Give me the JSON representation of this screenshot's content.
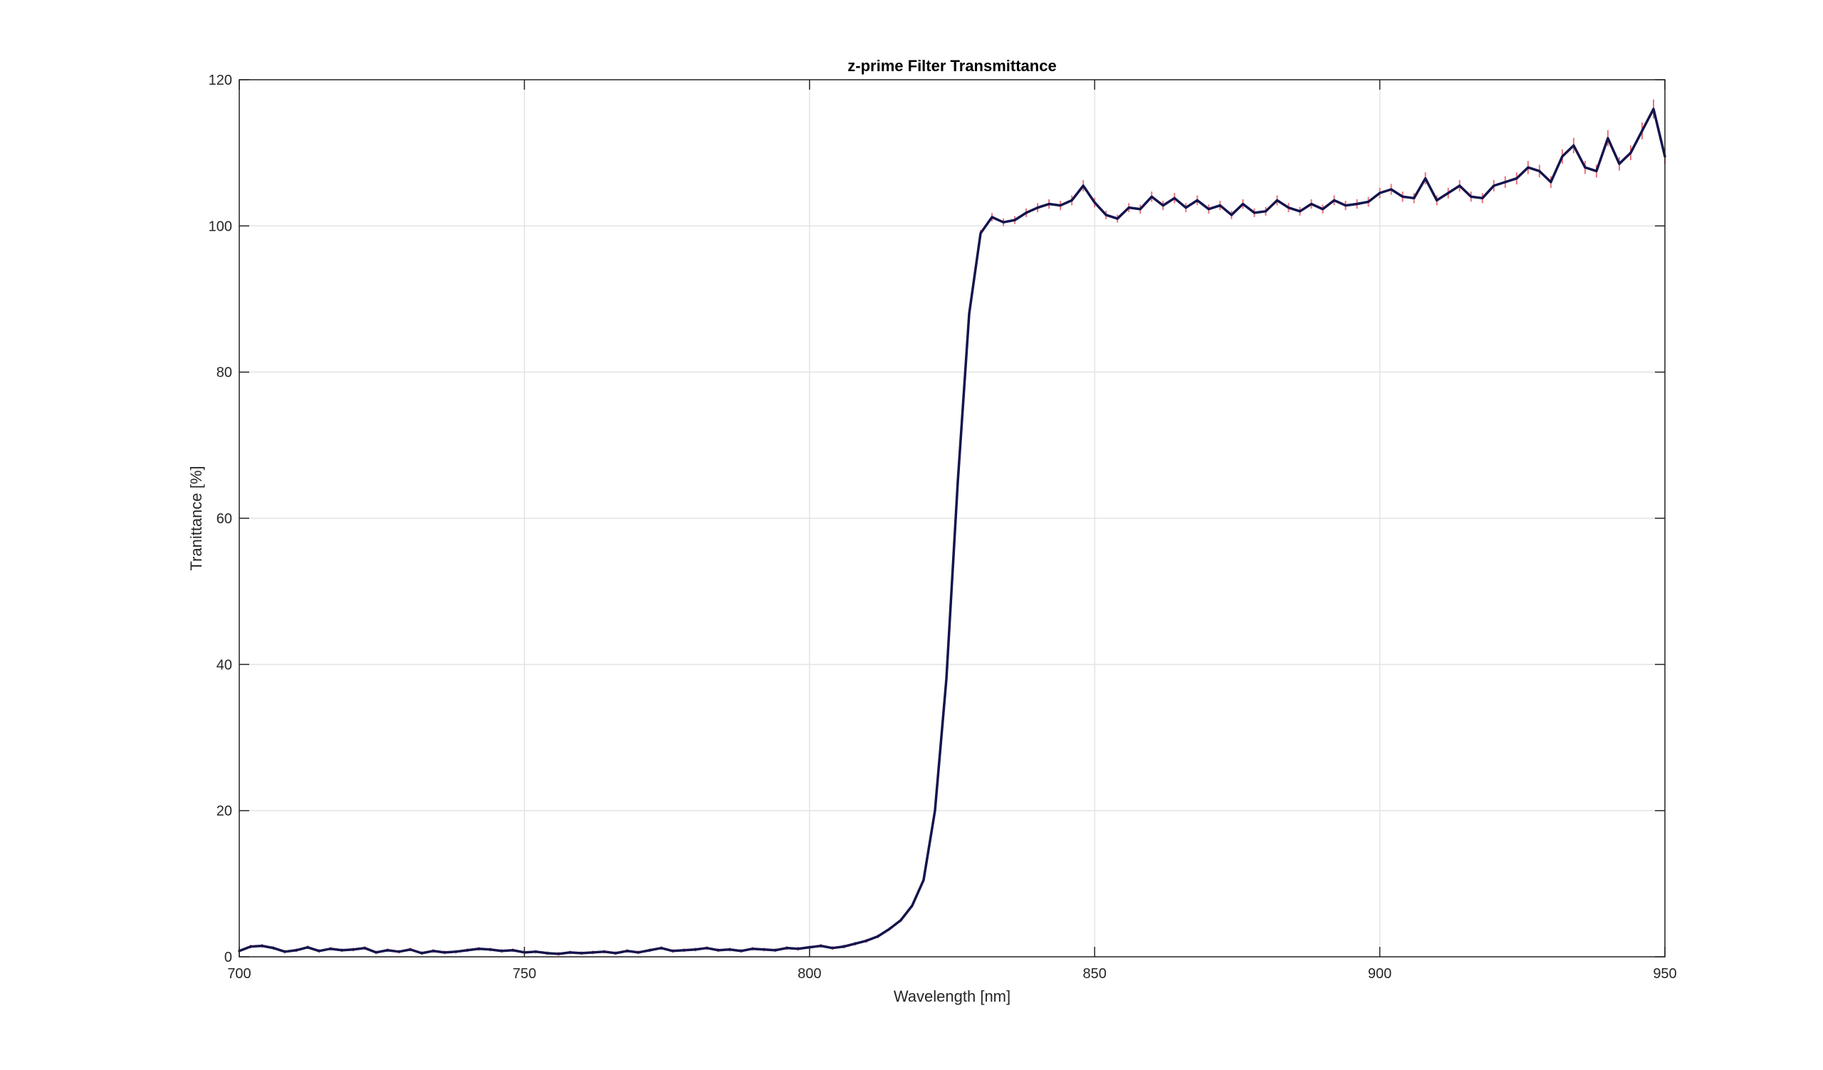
{
  "chart_data": {
    "type": "line",
    "title": "z-prime Filter Transmittance",
    "xlabel": "Wavelength [nm]",
    "ylabel": "Tranittance [%]",
    "xlim": [
      700,
      950
    ],
    "ylim": [
      0,
      120
    ],
    "xticks": [
      700,
      750,
      800,
      850,
      900,
      950
    ],
    "yticks": [
      0,
      20,
      40,
      60,
      80,
      100,
      120
    ],
    "grid": true,
    "colors": {
      "line": "#14144d",
      "error": "#e8747c",
      "grid": "#e3e3e3",
      "axis": "#262626"
    },
    "series": [
      {
        "x": [
          700,
          702,
          704,
          706,
          708,
          710,
          712,
          714,
          716,
          718,
          720,
          722,
          724,
          726,
          728,
          730,
          732,
          734,
          736,
          738,
          740,
          742,
          744,
          746,
          748,
          750,
          752,
          754,
          756,
          758,
          760,
          762,
          764,
          766,
          768,
          770,
          772,
          774,
          776,
          778,
          780,
          782,
          784,
          786,
          788,
          790,
          792,
          794,
          796,
          798,
          800,
          802,
          804,
          806,
          808,
          810,
          812,
          814,
          816,
          818,
          820,
          822,
          824,
          826,
          828,
          830,
          832,
          834,
          836,
          838,
          840,
          842,
          844,
          846,
          848,
          850,
          852,
          854,
          856,
          858,
          860,
          862,
          864,
          866,
          868,
          870,
          872,
          874,
          876,
          878,
          880,
          882,
          884,
          886,
          888,
          890,
          892,
          894,
          896,
          898,
          900,
          902,
          904,
          906,
          908,
          910,
          912,
          914,
          916,
          918,
          920,
          922,
          924,
          926,
          928,
          930,
          932,
          934,
          936,
          938,
          940,
          942,
          944,
          946,
          948,
          950
        ],
        "y": [
          0.8,
          1.4,
          1.5,
          1.2,
          0.7,
          0.9,
          1.3,
          0.8,
          1.1,
          0.9,
          1.0,
          1.2,
          0.6,
          0.9,
          0.7,
          1.0,
          0.5,
          0.8,
          0.6,
          0.7,
          0.9,
          1.1,
          1.0,
          0.8,
          0.9,
          0.6,
          0.7,
          0.5,
          0.4,
          0.6,
          0.5,
          0.6,
          0.7,
          0.5,
          0.8,
          0.6,
          0.9,
          1.2,
          0.8,
          0.9,
          1.0,
          1.2,
          0.9,
          1.0,
          0.8,
          1.1,
          1.0,
          0.9,
          1.2,
          1.1,
          1.3,
          1.5,
          1.2,
          1.4,
          1.8,
          2.2,
          2.8,
          3.8,
          5.0,
          7.0,
          10.5,
          20.0,
          38.0,
          65.0,
          88.0,
          99.0,
          101.2,
          100.5,
          100.8,
          101.8,
          102.5,
          103.0,
          102.8,
          103.5,
          105.5,
          103.2,
          101.5,
          101.0,
          102.5,
          102.3,
          104.0,
          102.8,
          103.8,
          102.5,
          103.5,
          102.3,
          102.8,
          101.5,
          103.0,
          101.8,
          102.0,
          103.5,
          102.5,
          102.0,
          103.0,
          102.3,
          103.5,
          102.8,
          103.0,
          103.3,
          104.5,
          105.0,
          104.0,
          103.8,
          106.5,
          103.5,
          104.5,
          105.5,
          104.0,
          103.8,
          105.5,
          106.0,
          106.5,
          108.0,
          107.5,
          106.0,
          109.5,
          111.0,
          108.0,
          107.5,
          112.0,
          108.5,
          110.0,
          113.0,
          116.0,
          109.5
        ]
      }
    ]
  }
}
